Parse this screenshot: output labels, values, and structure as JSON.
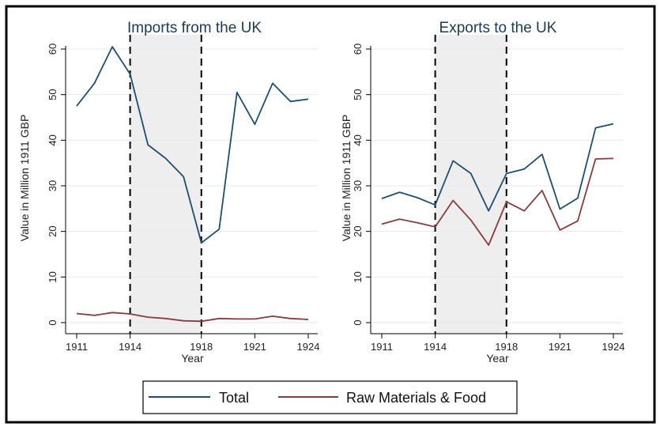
{
  "chart_data": [
    {
      "type": "line",
      "title": "Imports from the UK",
      "xlabel": "Year",
      "ylabel": "Value in Million 1911 GBP",
      "xlim": [
        1911,
        1924
      ],
      "ylim": [
        0,
        60
      ],
      "x_ticks": [
        1911,
        1914,
        1918,
        1921,
        1924
      ],
      "y_ticks": [
        0,
        10,
        20,
        30,
        40,
        50,
        60
      ],
      "grid": true,
      "shaded_period": [
        1914,
        1918
      ],
      "dashed_lines_at": [
        1914,
        1918
      ],
      "x": [
        1911,
        1912,
        1913,
        1914,
        1915,
        1916,
        1917,
        1918,
        1919,
        1920,
        1921,
        1922,
        1923,
        1924
      ],
      "series": [
        {
          "name": "Total",
          "color": "#1f4e6e",
          "values": [
            47.5,
            52.5,
            60.5,
            54.5,
            39,
            36,
            32,
            17.5,
            20.5,
            50.5,
            43.5,
            52.5,
            48.5,
            49
          ]
        },
        {
          "name": "Raw Materials & Food",
          "color": "#8b3a3e",
          "values": [
            2,
            1.6,
            2.2,
            1.9,
            1.2,
            0.9,
            0.4,
            0.3,
            0.9,
            0.8,
            0.8,
            1.4,
            0.9,
            0.7
          ]
        }
      ]
    },
    {
      "type": "line",
      "title": "Exports to the UK",
      "xlabel": "Year",
      "ylabel": "Value in Million 1911 GBP",
      "xlim": [
        1911,
        1924
      ],
      "ylim": [
        0,
        60
      ],
      "x_ticks": [
        1911,
        1914,
        1918,
        1921,
        1924
      ],
      "y_ticks": [
        0,
        10,
        20,
        30,
        40,
        50,
        60
      ],
      "grid": true,
      "shaded_period": [
        1914,
        1918
      ],
      "dashed_lines_at": [
        1914,
        1918
      ],
      "x": [
        1911,
        1912,
        1913,
        1914,
        1915,
        1916,
        1917,
        1918,
        1919,
        1920,
        1921,
        1922,
        1923,
        1924
      ],
      "series": [
        {
          "name": "Total",
          "color": "#1f4e6e",
          "values": [
            27.2,
            28.6,
            27.4,
            25.8,
            35.5,
            32.7,
            24.5,
            32.7,
            33.7,
            36.9,
            24.9,
            27.3,
            42.7,
            43.6
          ]
        },
        {
          "name": "Raw Materials & Food",
          "color": "#8b3a3e",
          "values": [
            21.6,
            22.7,
            21.9,
            21,
            26.8,
            22.5,
            17,
            26.5,
            24.5,
            29,
            20.3,
            22.3,
            35.9,
            36
          ]
        }
      ]
    }
  ],
  "legend": {
    "position": "bottom",
    "items": [
      {
        "label": "Total",
        "color": "#1f4e6e"
      },
      {
        "label": "Raw Materials & Food",
        "color": "#8b3a3e"
      }
    ]
  }
}
